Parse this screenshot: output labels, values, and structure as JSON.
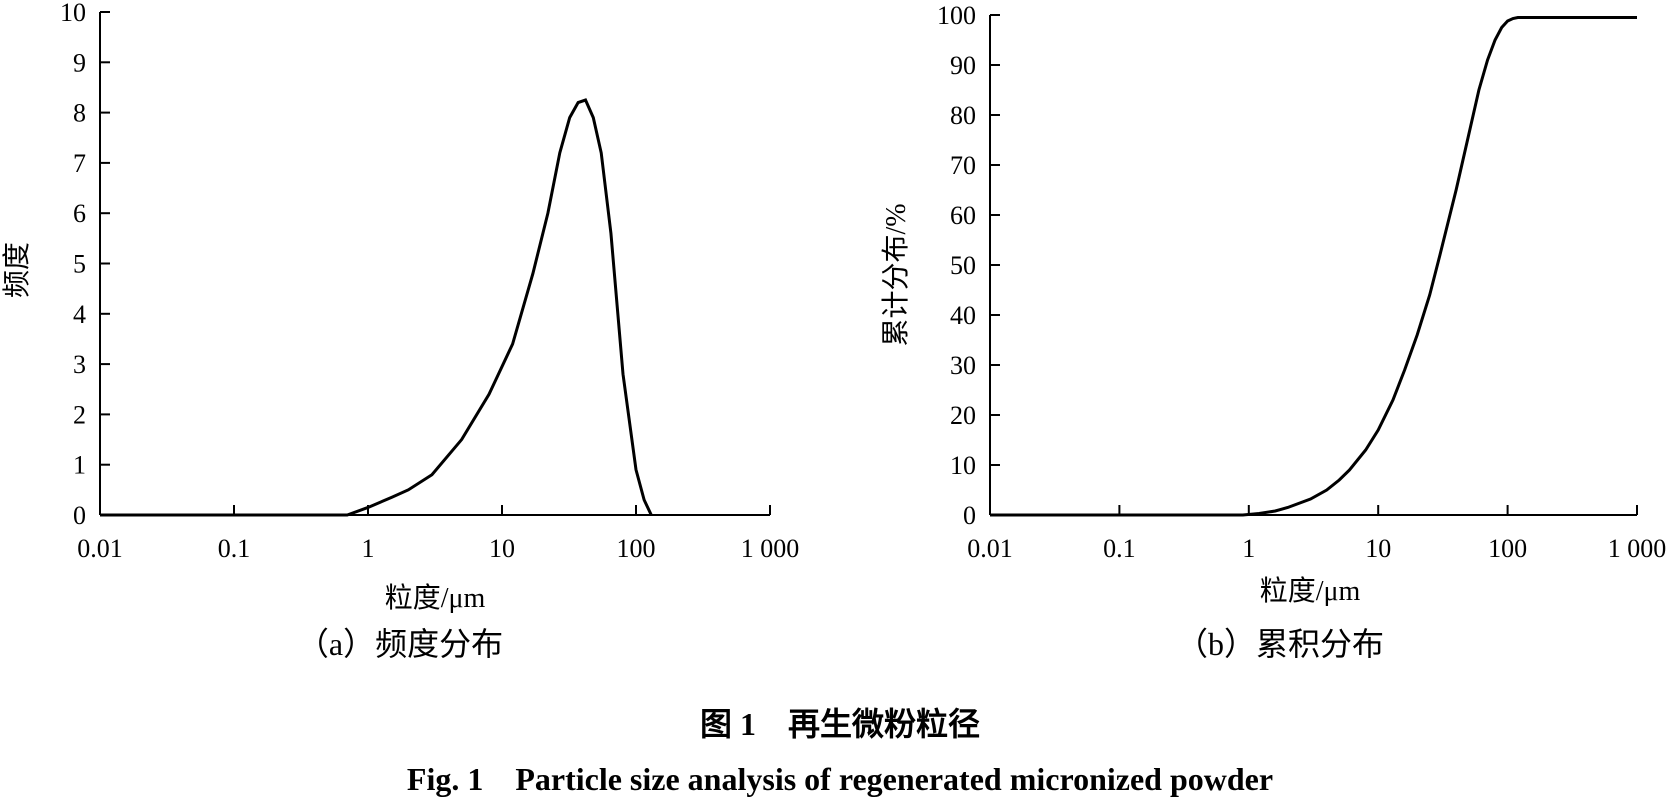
{
  "chart_data": [
    {
      "type": "line",
      "xscale": "log",
      "xlim": [
        0.01,
        1000
      ],
      "ylim": [
        0,
        10
      ],
      "xticks": [
        "0.01",
        "0.1",
        "1",
        "10",
        "100",
        "1 000"
      ],
      "yticks": [
        "0",
        "1",
        "2",
        "3",
        "4",
        "5",
        "6",
        "7",
        "8",
        "9",
        "10"
      ],
      "xlabel": "粒度/μm",
      "ylabel": "频度",
      "subtitle": "（a）频度分布",
      "grid": false,
      "series": [
        {
          "x": [
            0.01,
            0.7,
            1,
            1.5,
            2,
            3,
            5,
            8,
            12,
            17,
            22,
            27,
            32,
            37,
            42,
            48,
            55,
            65,
            80,
            100,
            115,
            130
          ],
          "y": [
            0,
            0,
            0.15,
            0.35,
            0.5,
            0.8,
            1.5,
            2.4,
            3.4,
            4.8,
            6.0,
            7.2,
            7.9,
            8.2,
            8.25,
            7.9,
            7.2,
            5.6,
            2.8,
            0.9,
            0.3,
            0
          ]
        }
      ]
    },
    {
      "type": "line",
      "xscale": "log",
      "xlim": [
        0.01,
        1000
      ],
      "ylim": [
        0,
        100
      ],
      "xticks": [
        "0.01",
        "0.1",
        "1",
        "10",
        "100",
        "1 000"
      ],
      "yticks": [
        "0",
        "10",
        "20",
        "30",
        "40",
        "50",
        "60",
        "70",
        "80",
        "90",
        "100"
      ],
      "xlabel": "粒度/μm",
      "ylabel": "累计分布/%",
      "subtitle": "（b）累积分布",
      "grid": false,
      "series": [
        {
          "x": [
            0.01,
            0.9,
            1.2,
            1.6,
            2,
            3,
            4,
            5,
            6,
            8,
            10,
            13,
            16,
            20,
            25,
            30,
            40,
            50,
            60,
            70,
            80,
            90,
            100,
            110,
            120,
            1000
          ],
          "y": [
            0,
            0,
            0.3,
            0.8,
            1.5,
            3.2,
            5,
            7,
            9,
            13,
            17,
            23,
            29,
            36,
            44,
            52,
            65,
            76,
            85,
            91,
            95,
            97.5,
            98.8,
            99.3,
            99.5,
            99.5
          ]
        }
      ]
    }
  ],
  "caption": {
    "cn": "图 1　再生微粉粒径",
    "en": "Fig. 1　Particle size analysis of regenerated micronized powder"
  }
}
